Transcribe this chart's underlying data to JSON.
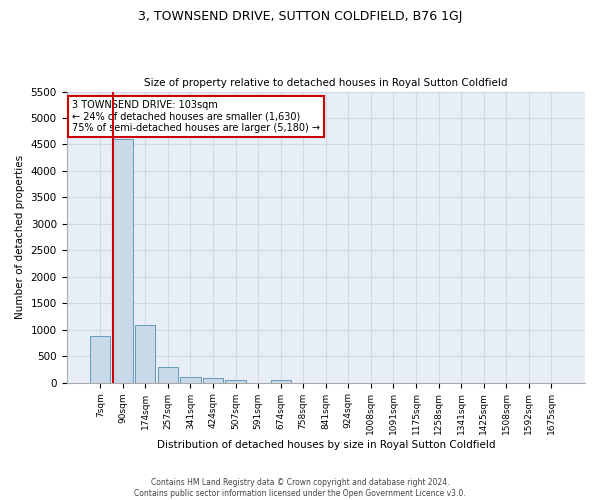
{
  "title": "3, TOWNSEND DRIVE, SUTTON COLDFIELD, B76 1GJ",
  "subtitle": "Size of property relative to detached houses in Royal Sutton Coldfield",
  "xlabel": "Distribution of detached houses by size in Royal Sutton Coldfield",
  "ylabel": "Number of detached properties",
  "footer_line1": "Contains HM Land Registry data © Crown copyright and database right 2024.",
  "footer_line2": "Contains public sector information licensed under the Open Government Licence v3.0.",
  "bar_labels": [
    "7sqm",
    "90sqm",
    "174sqm",
    "257sqm",
    "341sqm",
    "424sqm",
    "507sqm",
    "591sqm",
    "674sqm",
    "758sqm",
    "841sqm",
    "924sqm",
    "1008sqm",
    "1091sqm",
    "1175sqm",
    "1258sqm",
    "1341sqm",
    "1425sqm",
    "1508sqm",
    "1592sqm",
    "1675sqm"
  ],
  "bar_values": [
    880,
    4600,
    1080,
    290,
    100,
    80,
    50,
    0,
    50,
    0,
    0,
    0,
    0,
    0,
    0,
    0,
    0,
    0,
    0,
    0,
    0
  ],
  "bar_color": "#c9d9e8",
  "bar_edge_color": "#6699bb",
  "grid_color": "#d0d8e8",
  "background_color": "#e8eef5",
  "annotation_text": "3 TOWNSEND DRIVE: 103sqm\n← 24% of detached houses are smaller (1,630)\n75% of semi-detached houses are larger (5,180) →",
  "annotation_box_color": "#ffffff",
  "annotation_border_color": "#cc0000",
  "red_line_x": 1,
  "ylim": [
    0,
    5500
  ],
  "yticks": [
    0,
    500,
    1000,
    1500,
    2000,
    2500,
    3000,
    3500,
    4000,
    4500,
    5000,
    5500
  ]
}
